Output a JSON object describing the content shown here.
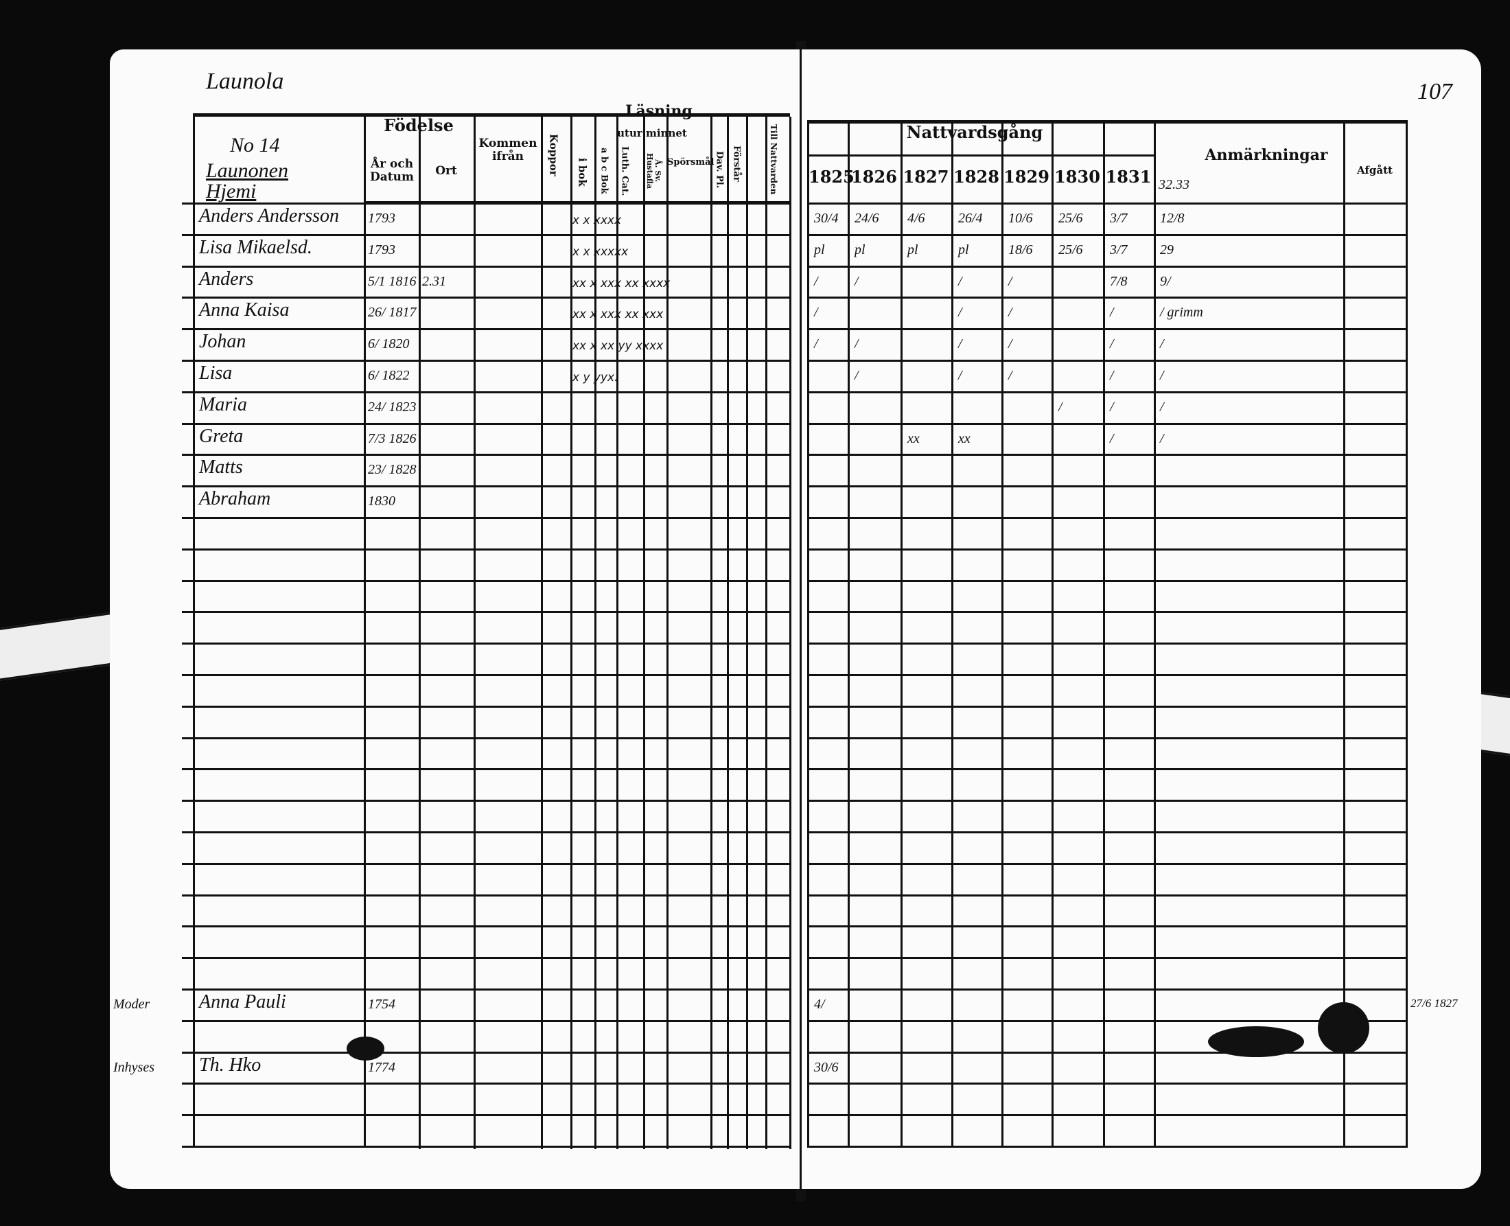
{
  "parish_heading": "Launola",
  "page_number": "107",
  "household": {
    "number": "No 14",
    "name_line1": "Launonen",
    "name_line2": "Hjemi"
  },
  "left_headers": {
    "birth": "Födelse",
    "year_date": "År och Datum",
    "place": "Ort",
    "came_from": "Kommen ifrån",
    "smallpox": "Koppor",
    "reading": "Läsning",
    "in_book": "i bok",
    "from_memory": "utur minnet",
    "abc_book": "a b c Bok",
    "luth_cat": "Luth. Cat.",
    "house_table": "Å. Sv. Hustafla",
    "questions": "Spörsmål",
    "dav_pl": "Dav. Pl.",
    "understands": "Förstår",
    "admitted": "Till Nattvarden"
  },
  "right_headers": {
    "communion": "Nattvardsgång",
    "years": [
      "1825",
      "1826",
      "1827",
      "1828",
      "1829",
      "1830",
      "1831"
    ],
    "extra_year": "32.33",
    "remarks": "Anmärkningar",
    "departed": "Afgått"
  },
  "persons": [
    {
      "name": "Anders Andersson",
      "born": "1793",
      "reading": "x  x xxxx",
      "communion": [
        "30/4",
        "24/6",
        "4/6",
        "26/4",
        "10/6",
        "25/6",
        "3/7"
      ],
      "remark": "12/8"
    },
    {
      "name": "Lisa Mikaelsd.",
      "born": "1793",
      "reading": "x  x xxxxx",
      "communion": [
        "pl",
        "pl",
        "pl",
        "pl",
        "18/6",
        "25/6",
        "3/7"
      ],
      "remark": "29"
    },
    {
      "name": "Anders",
      "born": "5/1 1816",
      "place": "2.31",
      "reading": "xx x xxx xx xxxx",
      "communion": [
        "/",
        "/",
        "",
        "/",
        "/",
        "",
        "7/8"
      ],
      "remark": "9/"
    },
    {
      "name": "Anna Kaisa",
      "born": "26/ 1817",
      "reading": "xx x xxx xx xxx",
      "communion": [
        "/",
        "",
        "",
        "/",
        "/",
        "",
        "/"
      ],
      "remark": "/ grimm"
    },
    {
      "name": "Johan",
      "born": "6/ 1820",
      "reading": "xx x xx yy xxxx",
      "communion": [
        "/",
        "/",
        "",
        "/",
        "/",
        "",
        "/"
      ],
      "remark": "/"
    },
    {
      "name": "Lisa",
      "born": "6/ 1822",
      "reading": "x  y yyx.",
      "communion": [
        "",
        "/",
        "",
        "/",
        "/",
        "",
        "/"
      ],
      "remark": "/"
    },
    {
      "name": "Maria",
      "born": "24/ 1823",
      "reading": "",
      "communion": [
        "",
        "",
        "",
        "",
        "",
        "/",
        "/"
      ],
      "remark": "/"
    },
    {
      "name": "Greta",
      "born": "7/3 1826",
      "reading": "",
      "communion": [
        "",
        "",
        "xx",
        "xx",
        "",
        "",
        "/"
      ],
      "remark": "/"
    },
    {
      "name": "Matts",
      "born": "23/ 1828",
      "reading": "",
      "communion": [
        "",
        "",
        "",
        "",
        "",
        "",
        ""
      ],
      "remark": ""
    },
    {
      "name": "Abraham",
      "born": "1830",
      "reading": "",
      "communion": [
        "",
        "",
        "",
        "",
        "",
        "",
        ""
      ],
      "remark": ""
    }
  ],
  "bottom_persons": [
    {
      "role": "Moder",
      "name": "Anna Pauli",
      "born": "1754",
      "communion": "4/",
      "remark": "27/6 1827"
    },
    {
      "role": "Inhyses",
      "name": "Th. Hko",
      "born": "1774",
      "communion": "30/6",
      "remark": ""
    }
  ]
}
